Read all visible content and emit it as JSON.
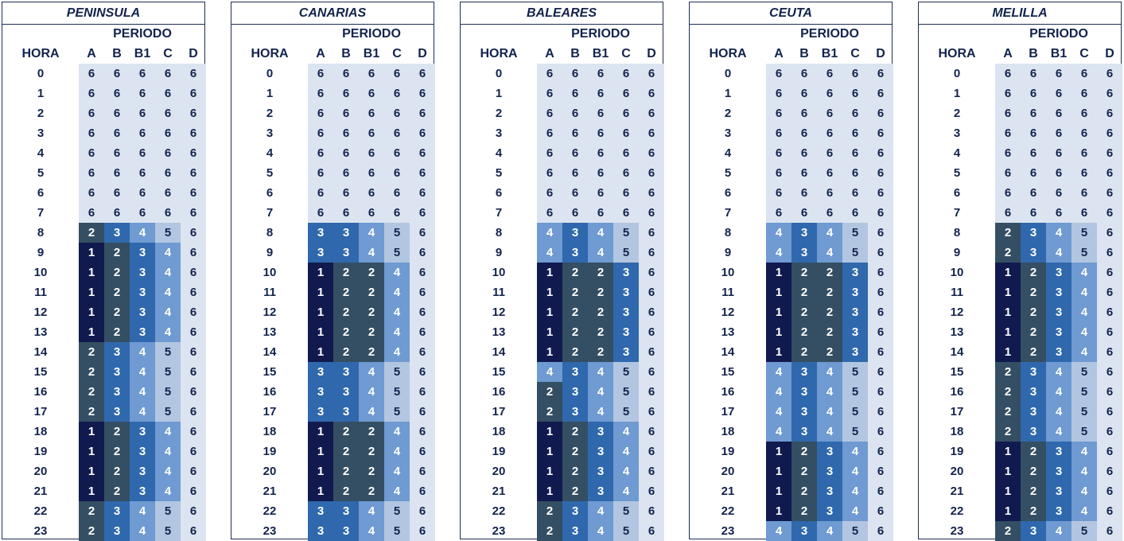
{
  "labels": {
    "periodo": "PERIODO",
    "hora": "HORA"
  },
  "periods": [
    "A",
    "B",
    "B1",
    "C",
    "D"
  ],
  "hours": [
    "0",
    "1",
    "2",
    "3",
    "4",
    "5",
    "6",
    "7",
    "8",
    "9",
    "10",
    "11",
    "12",
    "13",
    "14",
    "15",
    "16",
    "17",
    "18",
    "19",
    "20",
    "21",
    "22",
    "23"
  ],
  "level_colors": {
    "1": "#101a4f",
    "2": "#344f63",
    "3": "#2f68ad",
    "4": "#6f9ad2",
    "5": "#b3c6e1",
    "6": "#dbe4f0"
  },
  "regions": [
    {
      "name": "PENINSULA",
      "rows": [
        [
          "6",
          "6",
          "6",
          "6",
          "6"
        ],
        [
          "6",
          "6",
          "6",
          "6",
          "6"
        ],
        [
          "6",
          "6",
          "6",
          "6",
          "6"
        ],
        [
          "6",
          "6",
          "6",
          "6",
          "6"
        ],
        [
          "6",
          "6",
          "6",
          "6",
          "6"
        ],
        [
          "6",
          "6",
          "6",
          "6",
          "6"
        ],
        [
          "6",
          "6",
          "6",
          "6",
          "6"
        ],
        [
          "6",
          "6",
          "6",
          "6",
          "6"
        ],
        [
          "2",
          "3",
          "4",
          "5",
          "6"
        ],
        [
          "1",
          "2",
          "3",
          "4",
          "6"
        ],
        [
          "1",
          "2",
          "3",
          "4",
          "6"
        ],
        [
          "1",
          "2",
          "3",
          "4",
          "6"
        ],
        [
          "1",
          "2",
          "3",
          "4",
          "6"
        ],
        [
          "1",
          "2",
          "3",
          "4",
          "6"
        ],
        [
          "2",
          "3",
          "4",
          "5",
          "6"
        ],
        [
          "2",
          "3",
          "4",
          "5",
          "6"
        ],
        [
          "2",
          "3",
          "4",
          "5",
          "6"
        ],
        [
          "2",
          "3",
          "4",
          "5",
          "6"
        ],
        [
          "1",
          "2",
          "3",
          "4",
          "6"
        ],
        [
          "1",
          "2",
          "3",
          "4",
          "6"
        ],
        [
          "1",
          "2",
          "3",
          "4",
          "6"
        ],
        [
          "1",
          "2",
          "3",
          "4",
          "6"
        ],
        [
          "2",
          "3",
          "4",
          "5",
          "6"
        ],
        [
          "2",
          "3",
          "4",
          "5",
          "6"
        ]
      ]
    },
    {
      "name": "CANARIAS",
      "rows": [
        [
          "6",
          "6",
          "6",
          "6",
          "6"
        ],
        [
          "6",
          "6",
          "6",
          "6",
          "6"
        ],
        [
          "6",
          "6",
          "6",
          "6",
          "6"
        ],
        [
          "6",
          "6",
          "6",
          "6",
          "6"
        ],
        [
          "6",
          "6",
          "6",
          "6",
          "6"
        ],
        [
          "6",
          "6",
          "6",
          "6",
          "6"
        ],
        [
          "6",
          "6",
          "6",
          "6",
          "6"
        ],
        [
          "6",
          "6",
          "6",
          "6",
          "6"
        ],
        [
          "3",
          "3",
          "4",
          "5",
          "6"
        ],
        [
          "3",
          "3",
          "4",
          "5",
          "6"
        ],
        [
          "1",
          "2",
          "2",
          "4",
          "6"
        ],
        [
          "1",
          "2",
          "2",
          "4",
          "6"
        ],
        [
          "1",
          "2",
          "2",
          "4",
          "6"
        ],
        [
          "1",
          "2",
          "2",
          "4",
          "6"
        ],
        [
          "1",
          "2",
          "2",
          "4",
          "6"
        ],
        [
          "3",
          "3",
          "4",
          "5",
          "6"
        ],
        [
          "3",
          "3",
          "4",
          "5",
          "6"
        ],
        [
          "3",
          "3",
          "4",
          "5",
          "6"
        ],
        [
          "1",
          "2",
          "2",
          "4",
          "6"
        ],
        [
          "1",
          "2",
          "2",
          "4",
          "6"
        ],
        [
          "1",
          "2",
          "2",
          "4",
          "6"
        ],
        [
          "1",
          "2",
          "2",
          "4",
          "6"
        ],
        [
          "3",
          "3",
          "4",
          "5",
          "6"
        ],
        [
          "3",
          "3",
          "4",
          "5",
          "6"
        ]
      ]
    },
    {
      "name": "BALEARES",
      "rows": [
        [
          "6",
          "6",
          "6",
          "6",
          "6"
        ],
        [
          "6",
          "6",
          "6",
          "6",
          "6"
        ],
        [
          "6",
          "6",
          "6",
          "6",
          "6"
        ],
        [
          "6",
          "6",
          "6",
          "6",
          "6"
        ],
        [
          "6",
          "6",
          "6",
          "6",
          "6"
        ],
        [
          "6",
          "6",
          "6",
          "6",
          "6"
        ],
        [
          "6",
          "6",
          "6",
          "6",
          "6"
        ],
        [
          "6",
          "6",
          "6",
          "6",
          "6"
        ],
        [
          "4",
          "3",
          "4",
          "5",
          "6"
        ],
        [
          "4",
          "3",
          "4",
          "5",
          "6"
        ],
        [
          "1",
          "2",
          "2",
          "3",
          "6"
        ],
        [
          "1",
          "2",
          "2",
          "3",
          "6"
        ],
        [
          "1",
          "2",
          "2",
          "3",
          "6"
        ],
        [
          "1",
          "2",
          "2",
          "3",
          "6"
        ],
        [
          "1",
          "2",
          "2",
          "3",
          "6"
        ],
        [
          "4",
          "3",
          "4",
          "5",
          "6"
        ],
        [
          "2",
          "3",
          "4",
          "5",
          "6"
        ],
        [
          "2",
          "3",
          "4",
          "5",
          "6"
        ],
        [
          "1",
          "2",
          "3",
          "4",
          "6"
        ],
        [
          "1",
          "2",
          "3",
          "4",
          "6"
        ],
        [
          "1",
          "2",
          "3",
          "4",
          "6"
        ],
        [
          "1",
          "2",
          "3",
          "4",
          "6"
        ],
        [
          "2",
          "3",
          "4",
          "5",
          "6"
        ],
        [
          "2",
          "3",
          "4",
          "5",
          "6"
        ]
      ]
    },
    {
      "name": "CEUTA",
      "rows": [
        [
          "6",
          "6",
          "6",
          "6",
          "6"
        ],
        [
          "6",
          "6",
          "6",
          "6",
          "6"
        ],
        [
          "6",
          "6",
          "6",
          "6",
          "6"
        ],
        [
          "6",
          "6",
          "6",
          "6",
          "6"
        ],
        [
          "6",
          "6",
          "6",
          "6",
          "6"
        ],
        [
          "6",
          "6",
          "6",
          "6",
          "6"
        ],
        [
          "6",
          "6",
          "6",
          "6",
          "6"
        ],
        [
          "6",
          "6",
          "6",
          "6",
          "6"
        ],
        [
          "4",
          "3",
          "4",
          "5",
          "6"
        ],
        [
          "4",
          "3",
          "4",
          "5",
          "6"
        ],
        [
          "1",
          "2",
          "2",
          "3",
          "6"
        ],
        [
          "1",
          "2",
          "2",
          "3",
          "6"
        ],
        [
          "1",
          "2",
          "2",
          "3",
          "6"
        ],
        [
          "1",
          "2",
          "2",
          "3",
          "6"
        ],
        [
          "1",
          "2",
          "2",
          "3",
          "6"
        ],
        [
          "4",
          "3",
          "4",
          "5",
          "6"
        ],
        [
          "4",
          "3",
          "4",
          "5",
          "6"
        ],
        [
          "4",
          "3",
          "4",
          "5",
          "6"
        ],
        [
          "4",
          "3",
          "4",
          "5",
          "6"
        ],
        [
          "1",
          "2",
          "3",
          "4",
          "6"
        ],
        [
          "1",
          "2",
          "3",
          "4",
          "6"
        ],
        [
          "1",
          "2",
          "3",
          "4",
          "6"
        ],
        [
          "1",
          "2",
          "3",
          "4",
          "6"
        ],
        [
          "4",
          "3",
          "4",
          "5",
          "6"
        ]
      ]
    },
    {
      "name": "MELILLA",
      "rows": [
        [
          "6",
          "6",
          "6",
          "6",
          "6"
        ],
        [
          "6",
          "6",
          "6",
          "6",
          "6"
        ],
        [
          "6",
          "6",
          "6",
          "6",
          "6"
        ],
        [
          "6",
          "6",
          "6",
          "6",
          "6"
        ],
        [
          "6",
          "6",
          "6",
          "6",
          "6"
        ],
        [
          "6",
          "6",
          "6",
          "6",
          "6"
        ],
        [
          "6",
          "6",
          "6",
          "6",
          "6"
        ],
        [
          "6",
          "6",
          "6",
          "6",
          "6"
        ],
        [
          "2",
          "3",
          "4",
          "5",
          "6"
        ],
        [
          "2",
          "3",
          "4",
          "5",
          "6"
        ],
        [
          "1",
          "2",
          "3",
          "4",
          "6"
        ],
        [
          "1",
          "2",
          "3",
          "4",
          "6"
        ],
        [
          "1",
          "2",
          "3",
          "4",
          "6"
        ],
        [
          "1",
          "2",
          "3",
          "4",
          "6"
        ],
        [
          "1",
          "2",
          "3",
          "4",
          "6"
        ],
        [
          "2",
          "3",
          "4",
          "5",
          "6"
        ],
        [
          "2",
          "3",
          "4",
          "5",
          "6"
        ],
        [
          "2",
          "3",
          "4",
          "5",
          "6"
        ],
        [
          "2",
          "3",
          "4",
          "5",
          "6"
        ],
        [
          "1",
          "2",
          "3",
          "4",
          "6"
        ],
        [
          "1",
          "2",
          "3",
          "4",
          "6"
        ],
        [
          "1",
          "2",
          "3",
          "4",
          "6"
        ],
        [
          "1",
          "2",
          "3",
          "4",
          "6"
        ],
        [
          "2",
          "3",
          "4",
          "5",
          "6"
        ]
      ]
    }
  ]
}
